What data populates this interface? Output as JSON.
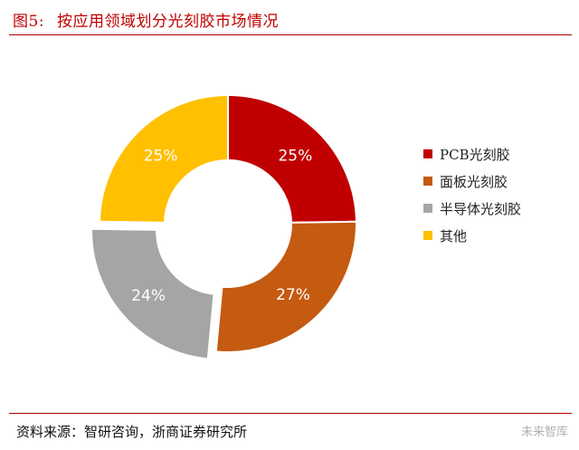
{
  "figure": {
    "number": "图5:",
    "title": "按应用领域划分光刻胶市场情况"
  },
  "chart_data": {
    "type": "pie",
    "variant": "donut",
    "categories": [
      "PCB光刻胶",
      "面板光刻胶",
      "半导体光刻胶",
      "其他"
    ],
    "values": [
      25,
      27,
      24,
      25
    ],
    "labels": [
      "25%",
      "27%",
      "24%",
      "25%"
    ],
    "unit": "%",
    "colors": [
      "#c00000",
      "#c55a11",
      "#a5a5a5",
      "#ffc000"
    ],
    "exploded": [
      "半导体光刻胶"
    ],
    "legend_position": "right"
  },
  "source": "资料来源：智研咨询，浙商证券研究所",
  "watermark": "未来智库"
}
